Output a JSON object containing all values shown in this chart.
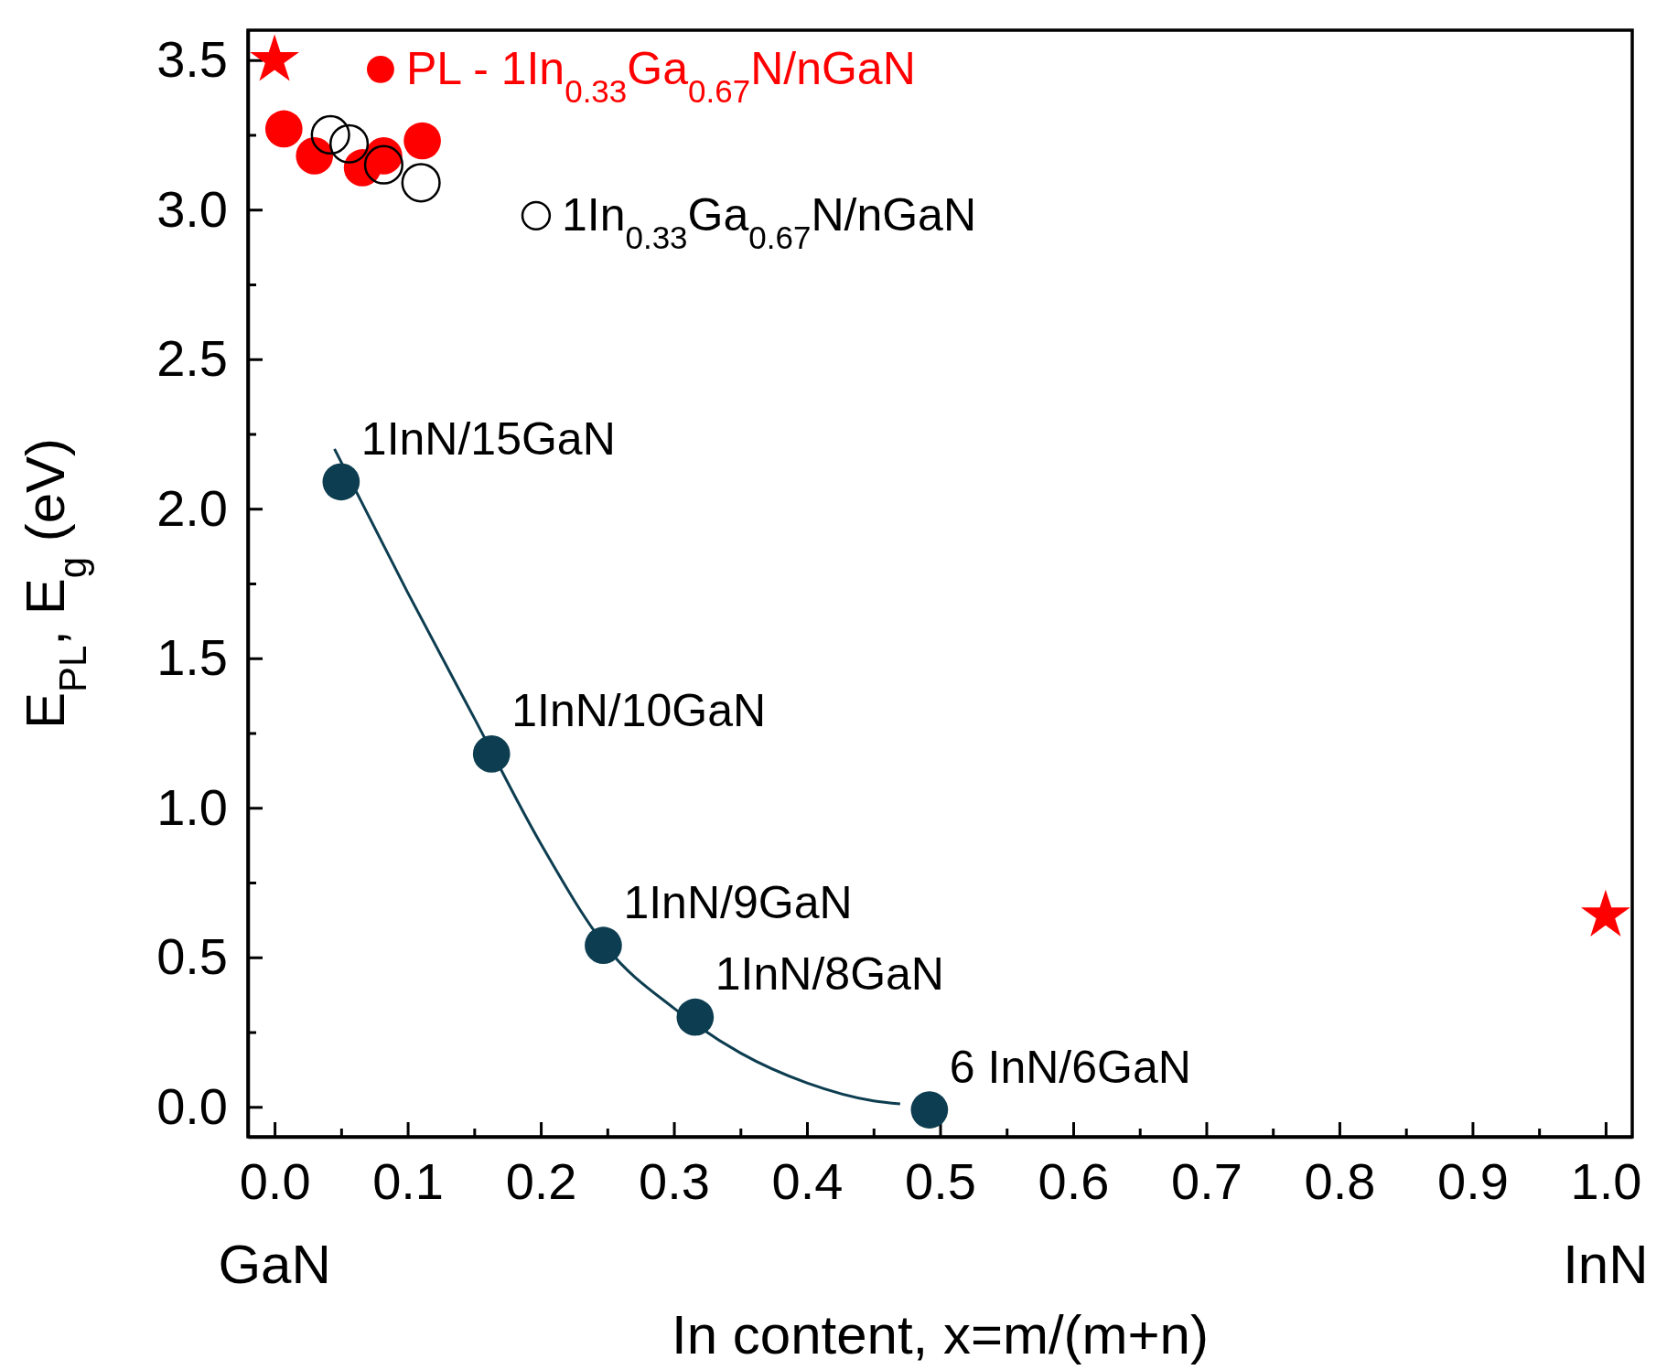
{
  "chart_data": {
    "type": "scatter",
    "xlabel": "In content, x=m/(m+n)",
    "ylabel": "E$_{PL}$, E$_{g}$ (eV)",
    "xlim": [
      -0.02,
      1.02
    ],
    "ylim": [
      -0.1,
      3.6
    ],
    "xticks": [
      {
        "value": 0,
        "label": "0.0"
      },
      {
        "value": 0.05,
        "label": null
      },
      {
        "value": 0.1,
        "label": "0.1"
      },
      {
        "value": 0.15,
        "label": null
      },
      {
        "value": 0.2,
        "label": "0.2"
      },
      {
        "value": 0.25,
        "label": null
      },
      {
        "value": 0.3,
        "label": "0.3"
      },
      {
        "value": 0.35,
        "label": null
      },
      {
        "value": 0.4,
        "label": "0.4"
      },
      {
        "value": 0.45,
        "label": null
      },
      {
        "value": 0.5,
        "label": "0.5"
      },
      {
        "value": 0.55,
        "label": null
      },
      {
        "value": 0.6,
        "label": "0.6"
      },
      {
        "value": 0.65,
        "label": null
      },
      {
        "value": 0.7,
        "label": "0.7"
      },
      {
        "value": 0.75,
        "label": null
      },
      {
        "value": 0.8,
        "label": "0.8"
      },
      {
        "value": 0.85,
        "label": null
      },
      {
        "value": 0.9,
        "label": "0.9"
      },
      {
        "value": 0.95,
        "label": null
      },
      {
        "value": 1,
        "label": "1.0"
      }
    ],
    "yticks": [
      {
        "value": 0,
        "label": "0.0"
      },
      {
        "value": 0.25,
        "label": null
      },
      {
        "value": 0.5,
        "label": "0.5"
      },
      {
        "value": 0.75,
        "label": null
      },
      {
        "value": 1,
        "label": "1.0"
      },
      {
        "value": 1.25,
        "label": null
      },
      {
        "value": 1.5,
        "label": "1.5"
      },
      {
        "value": 1.75,
        "label": null
      },
      {
        "value": 2,
        "label": "2.0"
      },
      {
        "value": 2.25,
        "label": null
      },
      {
        "value": 2.5,
        "label": "2.5"
      },
      {
        "value": 2.75,
        "label": null
      },
      {
        "value": 3,
        "label": "3.0"
      },
      {
        "value": 3.25,
        "label": null
      },
      {
        "value": 3.5,
        "label": "3.5"
      }
    ],
    "legend": "top",
    "grid": false,
    "series": [
      {
        "marker": "star",
        "color": "#ff0000",
        "x": [
          0,
          1
        ],
        "values": [
          3.5,
          0.64
        ]
      },
      {
        "marker": "circle",
        "name": "PL - 1In$_{0.33}$Ga$_{0.67}$N/nGaN",
        "color": "#ff0000",
        "x": [
          0.007,
          0.03,
          0.066,
          0.082,
          0.111
        ],
        "values": [
          3.27,
          3.18,
          3.14,
          3.18,
          3.23
        ]
      },
      {
        "marker": "circle",
        "name": "1In$_{0.33}$Ga$_{0.67}$N/nGaN",
        "color": "#000000",
        "x": [
          0.042,
          0.056,
          0.082,
          0.11
        ],
        "values": [
          3.25,
          3.22,
          3.15,
          3.09
        ]
      },
      {
        "type": "line",
        "marker": "none",
        "color": "#0d3d50",
        "x": [
          0.045,
          0.1,
          0.15,
          0.2,
          0.25,
          0.3,
          0.35,
          0.4,
          0.45,
          0.47
        ],
        "values": [
          2.2,
          1.72,
          1.3,
          0.88,
          0.53,
          0.33,
          0.18,
          0.08,
          0.02,
          0.01
        ]
      },
      {
        "marker": "circle",
        "color": "#0d3d50",
        "x": [
          0.05,
          0.163,
          0.247,
          0.316,
          0.492
        ],
        "values": [
          2.09,
          1.18,
          0.54,
          0.3,
          -0.01
        ]
      }
    ],
    "annotations": [
      {
        "text": "1InN/15GaN",
        "x": 0.05,
        "y": 2.09
      },
      {
        "text": "1InN/10GaN",
        "x": 0.163,
        "y": 1.18
      },
      {
        "text": "1InN/9GaN",
        "x": 0.247,
        "y": 0.54
      },
      {
        "text": "1InN/8GaN",
        "x": 0.316,
        "y": 0.3
      },
      {
        "text": "6 InN/6GaN",
        "x": 0.492,
        "y": -0.01
      },
      "GaN",
      "InN"
    ]
  }
}
